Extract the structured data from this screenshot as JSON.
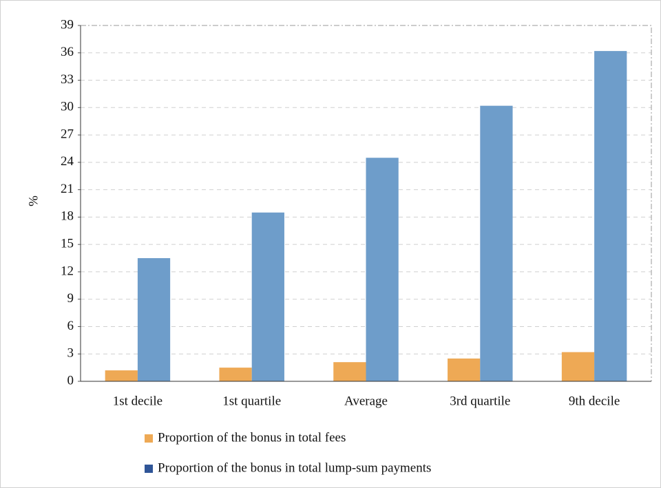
{
  "chart_data": {
    "type": "bar",
    "y_label": "%",
    "categories": [
      "1st decile",
      "1st quartile",
      "Average",
      "3rd quartile",
      "9th decile"
    ],
    "series": [
      {
        "name": "Proportion of the bonus in total fees",
        "color": "#eea955",
        "legend_color": "#eea955",
        "values": [
          1.2,
          1.5,
          2.1,
          2.5,
          3.2
        ]
      },
      {
        "name": "Proportion of the bonus in total lump-sum payments",
        "color": "#6e9dca",
        "legend_color": "#2f5597",
        "values": [
          13.5,
          18.5,
          24.5,
          30.2,
          36.2
        ]
      }
    ],
    "ylim": [
      0,
      39
    ],
    "yticks": [
      0,
      3,
      6,
      9,
      12,
      15,
      18,
      21,
      24,
      27,
      30,
      33,
      36,
      39
    ],
    "grid": true
  }
}
